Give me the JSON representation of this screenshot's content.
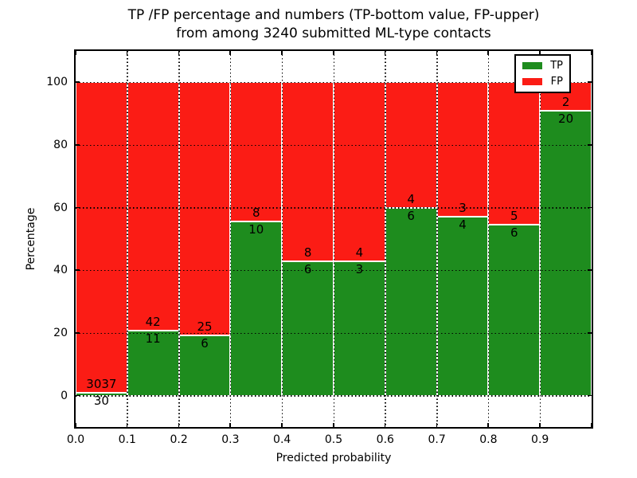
{
  "title": {
    "line1": "TP /FP percentage and numbers (TP-bottom value, FP-upper)",
    "line2": "from among 3240 submitted ML-type contacts"
  },
  "axes": {
    "xlabel": "Predicted probability",
    "ylabel": "Percentage",
    "y_tick_labels": [
      "0",
      "20",
      "40",
      "60",
      "80",
      "100"
    ],
    "x_tick_labels": [
      "0.0",
      "0.1",
      "0.2",
      "0.3",
      "0.4",
      "0.5",
      "0.6",
      "0.7",
      "0.8",
      "0.9"
    ]
  },
  "legend": {
    "items": [
      {
        "label": "TP",
        "color": "#1e8c1e"
      },
      {
        "label": "FP",
        "color": "#fb1c15"
      }
    ]
  },
  "colors": {
    "tp_fill": "#1e8c1e",
    "fp_fill": "#fb1c15",
    "bar_edge": "#ffffff",
    "grid": "#000000"
  },
  "chart_data": {
    "type": "bar",
    "stacked": true,
    "title": "TP /FP percentage and numbers (TP-bottom value, FP-upper) from among 3240 submitted ML-type contacts",
    "xlabel": "Predicted probability",
    "ylabel": "Percentage",
    "xlim": [
      0.0,
      1.0
    ],
    "ylim": [
      -10,
      110
    ],
    "yticks": [
      0,
      20,
      40,
      60,
      80,
      100
    ],
    "xticks": [
      0.0,
      0.1,
      0.2,
      0.3,
      0.4,
      0.5,
      0.6,
      0.7,
      0.8,
      0.9
    ],
    "grid": true,
    "legend_position": "upper right",
    "total_contacts": 3240,
    "bin_width": 0.1,
    "series": [
      {
        "name": "TP",
        "counts": [
          30,
          11,
          6,
          10,
          6,
          3,
          6,
          4,
          6,
          20
        ]
      },
      {
        "name": "FP",
        "counts": [
          3037,
          42,
          25,
          8,
          8,
          4,
          4,
          3,
          5,
          2
        ]
      }
    ],
    "bins": [
      {
        "x_start": 0.0,
        "x_end": 0.1,
        "tp_count": 30,
        "fp_count": 3037,
        "tp_pct": 0.98,
        "fp_pct": 99.02
      },
      {
        "x_start": 0.1,
        "x_end": 0.2,
        "tp_count": 11,
        "fp_count": 42,
        "tp_pct": 20.75,
        "fp_pct": 79.25
      },
      {
        "x_start": 0.2,
        "x_end": 0.3,
        "tp_count": 6,
        "fp_count": 25,
        "tp_pct": 19.35,
        "fp_pct": 80.65
      },
      {
        "x_start": 0.3,
        "x_end": 0.4,
        "tp_count": 10,
        "fp_count": 8,
        "tp_pct": 55.56,
        "fp_pct": 44.44
      },
      {
        "x_start": 0.4,
        "x_end": 0.5,
        "tp_count": 6,
        "fp_count": 8,
        "tp_pct": 42.86,
        "fp_pct": 57.14
      },
      {
        "x_start": 0.5,
        "x_end": 0.6,
        "tp_count": 3,
        "fp_count": 4,
        "tp_pct": 42.86,
        "fp_pct": 57.14
      },
      {
        "x_start": 0.6,
        "x_end": 0.7,
        "tp_count": 6,
        "fp_count": 4,
        "tp_pct": 60.0,
        "fp_pct": 40.0
      },
      {
        "x_start": 0.7,
        "x_end": 0.8,
        "tp_count": 4,
        "fp_count": 3,
        "tp_pct": 57.14,
        "fp_pct": 42.86
      },
      {
        "x_start": 0.8,
        "x_end": 0.9,
        "tp_count": 6,
        "fp_count": 5,
        "tp_pct": 54.55,
        "fp_pct": 45.45
      },
      {
        "x_start": 0.9,
        "x_end": 1.0,
        "tp_count": 20,
        "fp_count": 2,
        "tp_pct": 90.91,
        "fp_pct": 9.09
      }
    ]
  }
}
